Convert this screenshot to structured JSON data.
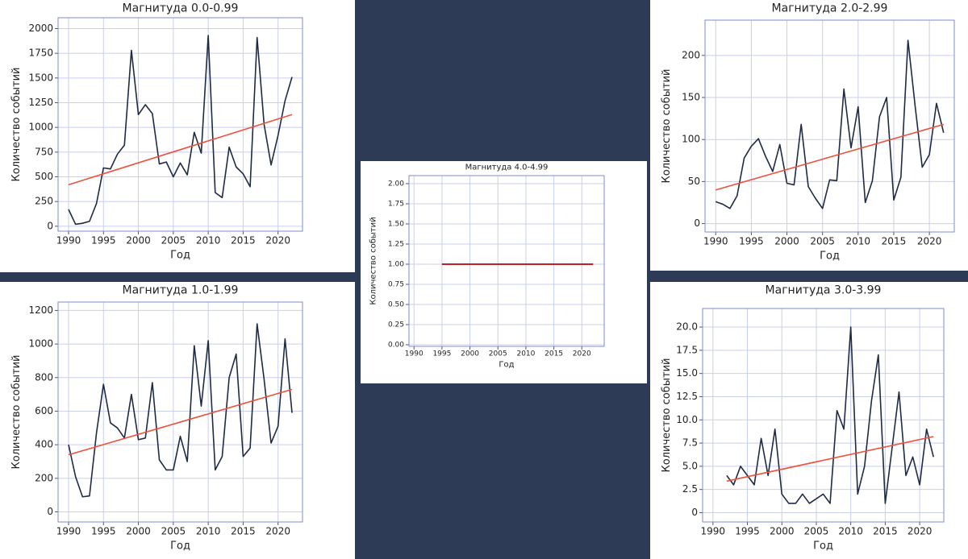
{
  "chart_data": [
    {
      "type": "line",
      "title": "Магнитуда 0.0-0.99",
      "x_label": "Год",
      "y_label": "Количество событий",
      "x": [
        1990,
        1991,
        1992,
        1993,
        1994,
        1995,
        1996,
        1997,
        1998,
        1999,
        2000,
        2001,
        2002,
        2003,
        2004,
        2005,
        2006,
        2007,
        2008,
        2009,
        2010,
        2011,
        2012,
        2013,
        2014,
        2015,
        2016,
        2017,
        2018,
        2019,
        2020,
        2021,
        2022
      ],
      "values": [
        170,
        20,
        30,
        50,
        230,
        590,
        580,
        730,
        820,
        1780,
        1130,
        1230,
        1140,
        630,
        650,
        500,
        640,
        520,
        950,
        740,
        1930,
        340,
        290,
        800,
        600,
        530,
        400,
        1910,
        1030,
        620,
        920,
        1270,
        1510
      ],
      "color": "#1f2a44",
      "trend": {
        "x": [
          1990,
          2022
        ],
        "values": [
          420,
          1130
        ],
        "color": "#f0503c"
      },
      "xlim": [
        1988.5,
        2023.5
      ],
      "xticks": [
        1990,
        1995,
        2000,
        2005,
        2010,
        2015,
        2020
      ],
      "ylim": [
        -50,
        2110
      ],
      "yticks": [
        0,
        250,
        500,
        750,
        1000,
        1250,
        1500,
        1750,
        2000
      ],
      "grid": true
    },
    {
      "type": "line",
      "title": "Магнитуда 1.0-1.99",
      "x_label": "Год",
      "y_label": "Количество событий",
      "x": [
        1990,
        1991,
        1992,
        1993,
        1994,
        1995,
        1996,
        1997,
        1998,
        1999,
        2000,
        2001,
        2002,
        2003,
        2004,
        2005,
        2006,
        2007,
        2008,
        2009,
        2010,
        2011,
        2012,
        2013,
        2014,
        2015,
        2016,
        2017,
        2018,
        2019,
        2020,
        2021,
        2022
      ],
      "values": [
        400,
        210,
        90,
        95,
        470,
        760,
        530,
        500,
        440,
        700,
        430,
        440,
        770,
        310,
        250,
        250,
        450,
        300,
        990,
        630,
        1020,
        250,
        330,
        800,
        940,
        330,
        380,
        1120,
        790,
        410,
        510,
        1030,
        590
      ],
      "color": "#1f2a44",
      "trend": {
        "x": [
          1990,
          2022
        ],
        "values": [
          340,
          730
        ],
        "color": "#f0503c"
      },
      "xlim": [
        1988.5,
        2023.5
      ],
      "xticks": [
        1990,
        1995,
        2000,
        2005,
        2010,
        2015,
        2020
      ],
      "ylim": [
        -60,
        1250
      ],
      "yticks": [
        0,
        200,
        400,
        600,
        800,
        1000,
        1200
      ],
      "grid": true
    },
    {
      "type": "line",
      "title": "Магнитуда 2.0-2.99",
      "x_label": "Год",
      "y_label": "Количество событий",
      "x": [
        1990,
        1991,
        1992,
        1993,
        1994,
        1995,
        1996,
        1997,
        1998,
        1999,
        2000,
        2001,
        2002,
        2003,
        2004,
        2005,
        2006,
        2007,
        2008,
        2009,
        2010,
        2011,
        2012,
        2013,
        2014,
        2015,
        2016,
        2017,
        2018,
        2019,
        2020,
        2021,
        2022
      ],
      "values": [
        26,
        23,
        18,
        33,
        78,
        92,
        101,
        80,
        62,
        94,
        48,
        46,
        118,
        44,
        30,
        18,
        52,
        51,
        160,
        90,
        139,
        25,
        51,
        127,
        150,
        28,
        55,
        218,
        140,
        67,
        82,
        143,
        108
      ],
      "color": "#1f2a44",
      "trend": {
        "x": [
          1990,
          2022
        ],
        "values": [
          40,
          118
        ],
        "color": "#f0503c"
      },
      "xlim": [
        1988.5,
        2023.5
      ],
      "xticks": [
        1990,
        1995,
        2000,
        2005,
        2010,
        2015,
        2020
      ],
      "ylim": [
        -10,
        242
      ],
      "yticks": [
        0,
        50,
        100,
        150,
        200
      ],
      "grid": true
    },
    {
      "type": "line",
      "title": "Магнитуда 3.0-3.99",
      "x_label": "Год",
      "y_label": "Количество событий",
      "x": [
        1992,
        1993,
        1994,
        1995,
        1996,
        1997,
        1998,
        1999,
        2000,
        2001,
        2002,
        2003,
        2004,
        2005,
        2006,
        2007,
        2008,
        2009,
        2010,
        2011,
        2012,
        2013,
        2014,
        2015,
        2016,
        2017,
        2018,
        2019,
        2020,
        2021,
        2022
      ],
      "values": [
        4,
        3,
        5,
        4,
        3,
        8,
        4,
        9,
        2,
        1,
        1,
        2,
        1,
        1.5,
        2,
        1,
        11,
        9,
        20,
        2,
        5,
        12,
        17,
        1,
        7,
        13,
        4,
        6,
        3,
        9,
        6
      ],
      "color": "#1f2a44",
      "trend": {
        "x": [
          1992,
          2022
        ],
        "values": [
          3.4,
          8.2
        ],
        "color": "#f0503c"
      },
      "xlim": [
        1988.5,
        2023.5
      ],
      "xticks": [
        1990,
        1995,
        2000,
        2005,
        2010,
        2015,
        2020
      ],
      "ylim": [
        -1,
        22
      ],
      "yticks": [
        0,
        2.5,
        {
          "value": 5,
          "label": "5.0"
        },
        7.5,
        {
          "value": 10,
          "label": "10.0"
        },
        12.5,
        {
          "value": 15,
          "label": "15.0"
        },
        17.5,
        {
          "value": 20,
          "label": "20.0"
        }
      ],
      "grid": true
    },
    {
      "type": "line",
      "title": "Магнитуда 4.0-4.99",
      "x_label": "Год",
      "y_label": "Количество событий",
      "x": [
        1995,
        1996,
        1997,
        1998,
        1999,
        2000,
        2001,
        2002,
        2003,
        2004,
        2005,
        2006,
        2007,
        2008,
        2009,
        2010,
        2011,
        2012,
        2013,
        2014,
        2015,
        2016,
        2017,
        2018,
        2019,
        2020,
        2021,
        2022
      ],
      "values": [
        1,
        1,
        1,
        1,
        1,
        1,
        1,
        1,
        1,
        1,
        1,
        1,
        1,
        1,
        1,
        1,
        1,
        1,
        1,
        1,
        1,
        1,
        1,
        1,
        1,
        1,
        1,
        1
      ],
      "color": "#1f2a44",
      "trend": {
        "x": [
          1995,
          2022
        ],
        "values": [
          1,
          1
        ],
        "color": "#c0202a"
      },
      "xlim": [
        1989.1,
        2024
      ],
      "xticks": [
        1990,
        1995,
        2000,
        2005,
        2010,
        2015,
        2020
      ],
      "ylim": [
        -0.02,
        2.1
      ],
      "yticks": [
        {
          "value": 0,
          "label": "0.00"
        },
        0.25,
        {
          "value": 0.5,
          "label": "0.50"
        },
        0.75,
        {
          "value": 1,
          "label": "1.00"
        },
        1.25,
        {
          "value": 1.5,
          "label": "1.50"
        },
        1.75,
        {
          "value": 2,
          "label": "2.00"
        }
      ],
      "grid": true
    }
  ]
}
